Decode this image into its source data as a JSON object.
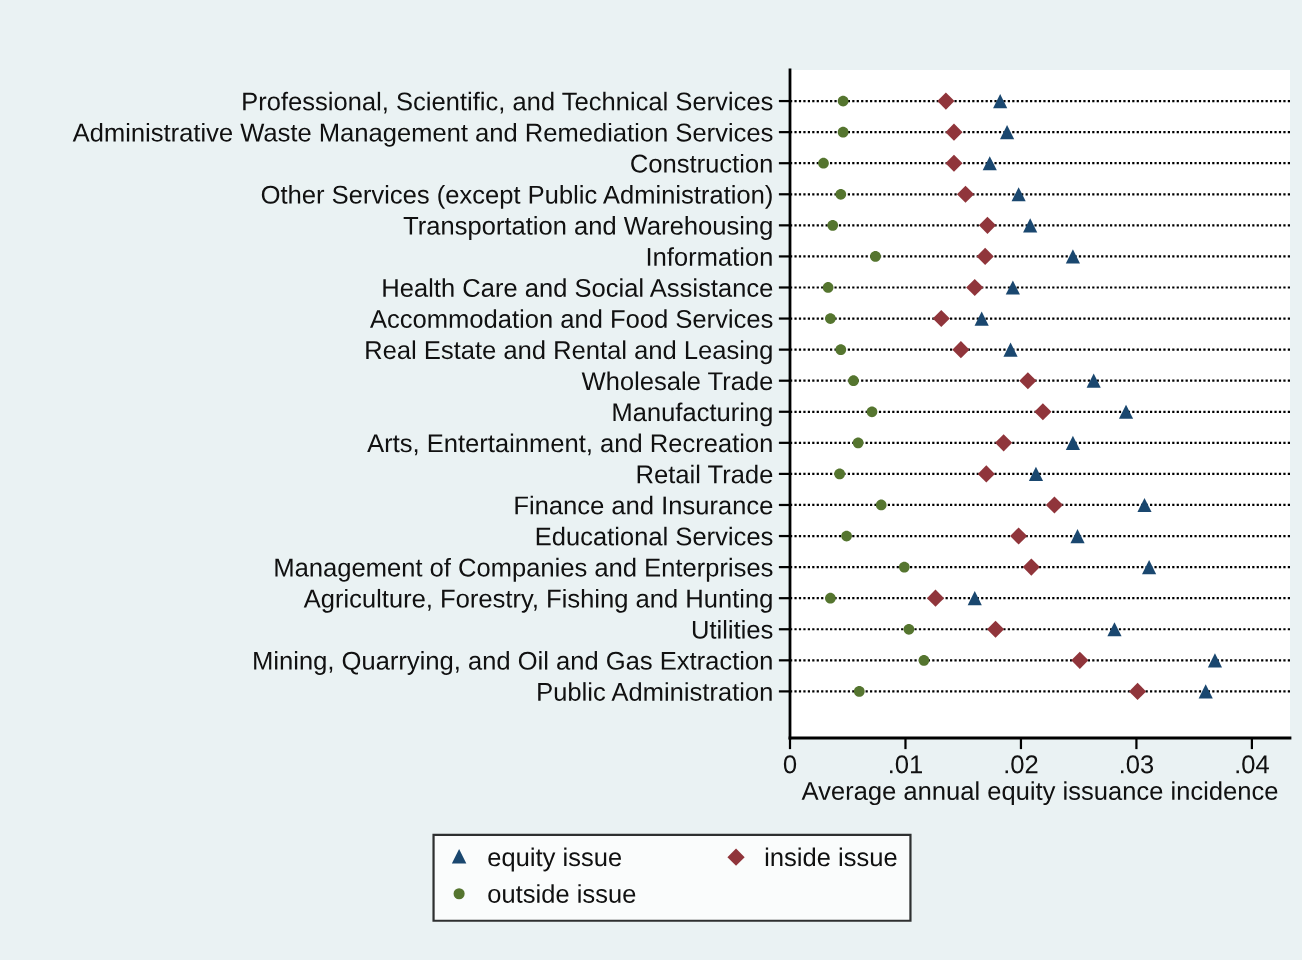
{
  "chart_data": {
    "type": "scatter",
    "orientation": "horizontal",
    "categories": [
      "Professional, Scientific, and Technical Services",
      "Administrative Waste Management and Remediation Services",
      "Construction",
      "Other Services (except Public Administration)",
      "Transportation and Warehousing",
      "Information",
      "Health Care and Social Assistance",
      "Accommodation and Food Services",
      "Real Estate and Rental and Leasing",
      "Wholesale Trade",
      "Manufacturing",
      "Arts, Entertainment, and Recreation",
      "Retail Trade",
      "Finance and Insurance",
      "Educational Services",
      "Management of Companies and Enterprises",
      "Agriculture, Forestry, Fishing and Hunting",
      "Utilities",
      "Mining, Quarrying, and Oil and Gas Extraction",
      "Public Administration"
    ],
    "series": [
      {
        "name": "equity issue",
        "color": "#1a476f",
        "marker": "triangle",
        "values": [
          0.0182,
          0.0188,
          0.0173,
          0.0198,
          0.0208,
          0.0245,
          0.0193,
          0.0166,
          0.0191,
          0.0263,
          0.0291,
          0.0245,
          0.0213,
          0.0307,
          0.0249,
          0.0311,
          0.016,
          0.0281,
          0.0368,
          0.036
        ]
      },
      {
        "name": "inside issue",
        "color": "#90353b",
        "marker": "diamond",
        "values": [
          0.0135,
          0.0142,
          0.0142,
          0.0152,
          0.0171,
          0.0169,
          0.016,
          0.0131,
          0.0148,
          0.0206,
          0.0219,
          0.0185,
          0.017,
          0.0229,
          0.0198,
          0.0209,
          0.0126,
          0.0178,
          0.0251,
          0.0301
        ]
      },
      {
        "name": "outside issue",
        "color": "#55752f",
        "marker": "circle",
        "values": [
          0.0046,
          0.0046,
          0.0029,
          0.0044,
          0.0037,
          0.0074,
          0.0033,
          0.0035,
          0.0044,
          0.0055,
          0.0071,
          0.0059,
          0.0043,
          0.0079,
          0.0049,
          0.0099,
          0.0035,
          0.0103,
          0.0116,
          0.006
        ]
      }
    ],
    "xlabel": "Average annual equity issuance incidence",
    "xlim": [
      0,
      0.0433
    ],
    "xticks": [
      0,
      {
        "value": 0.01,
        "label": ".01"
      },
      {
        "value": 0.02,
        "label": ".02"
      },
      {
        "value": 0.03,
        "label": ".03"
      },
      {
        "value": 0.04,
        "label": ".04"
      }
    ],
    "grid": "y",
    "legend": "bottom"
  }
}
